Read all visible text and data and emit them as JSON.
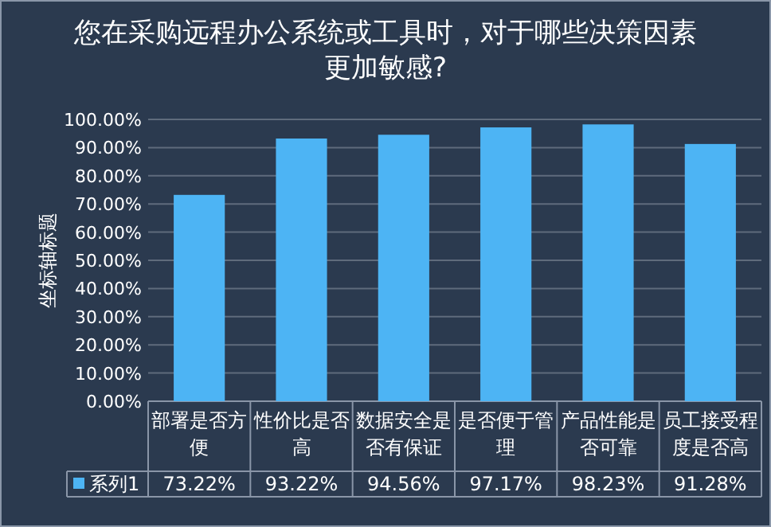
{
  "chart_data": {
    "type": "bar",
    "title": "您在采购远程办公系统或工具时，对于哪些决策因素更加敏感?",
    "ylabel": "坐标轴标题",
    "categories": [
      "部署是否方便",
      "性价比是否高",
      "数据安全是否有保证",
      "是否便于管理",
      "产品性能是否可靠",
      "员工接受程度是否高"
    ],
    "series": [
      {
        "name": "系列1",
        "color": "#4db4f4",
        "values": [
          73.22,
          93.22,
          94.56,
          97.17,
          98.23,
          91.28
        ],
        "value_labels": [
          "73.22%",
          "93.22%",
          "94.56%",
          "97.17%",
          "98.23%",
          "91.28%"
        ]
      }
    ],
    "ylim": [
      0,
      100
    ],
    "yticks": [
      {
        "value": 0,
        "label": "0.00%"
      },
      {
        "value": 10,
        "label": "10.00%"
      },
      {
        "value": 20,
        "label": "20.00%"
      },
      {
        "value": 30,
        "label": "30.00%"
      },
      {
        "value": 40,
        "label": "40.00%"
      },
      {
        "value": 50,
        "label": "50.00%"
      },
      {
        "value": 60,
        "label": "60.00%"
      },
      {
        "value": 70,
        "label": "70.00%"
      },
      {
        "value": 80,
        "label": "80.00%"
      },
      {
        "value": 90,
        "label": "90.00%"
      },
      {
        "value": 100,
        "label": "100.00%"
      }
    ],
    "grid": "y",
    "legend": "bottom"
  }
}
